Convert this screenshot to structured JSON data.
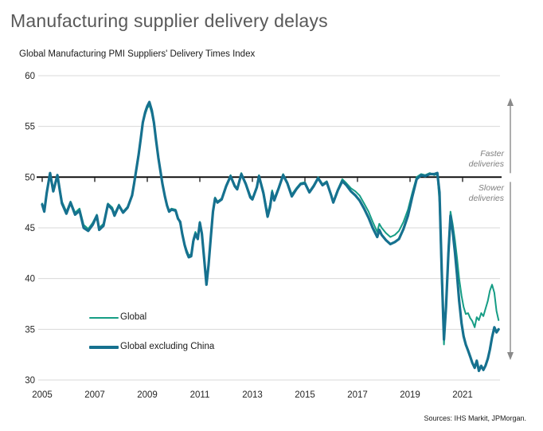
{
  "title": "Manufacturing supplier delivery delays",
  "subtitle": "Global Manufacturing PMI Suppliers' Delivery Times Index",
  "source": "Sources: IHS Markit, JPMorgan.",
  "annotations": {
    "faster": {
      "line1": "Faster",
      "line2": "deliveries"
    },
    "slower": {
      "line1": "Slower",
      "line2": "deliveries"
    }
  },
  "legend": {
    "items": [
      {
        "label": "Global"
      },
      {
        "label": "Global excluding China"
      }
    ]
  },
  "colors": {
    "global_line": "#169d85",
    "ex_china_line": "#16718f",
    "grid": "#d8d8d8",
    "reference_line": "#000000",
    "arrow": "#8a8a8a",
    "title_text": "#595959",
    "annotation_text": "#7f7f7f",
    "axis_text": "#262626"
  },
  "chart_data": {
    "type": "line",
    "title": "Global Manufacturing PMI Suppliers' Delivery Times Index",
    "xlabel": "",
    "ylabel": "",
    "xlim": [
      2005,
      2022.45
    ],
    "ylim": [
      30,
      60
    ],
    "xticks": [
      2005,
      2007,
      2009,
      2011,
      2013,
      2015,
      2017,
      2019,
      2021
    ],
    "yticks": [
      30,
      35,
      40,
      45,
      50,
      55,
      60
    ],
    "reference_line": 50,
    "grid": "horizontal",
    "legend_position": "inside-bottom-left",
    "series": [
      {
        "name": "Global",
        "color": "#169d85",
        "width": 2,
        "points": [
          [
            2005.0,
            47.4
          ],
          [
            2005.08,
            46.8
          ],
          [
            2005.17,
            48.5
          ],
          [
            2005.3,
            50.3
          ],
          [
            2005.42,
            48.8
          ],
          [
            2005.58,
            50.1
          ],
          [
            2005.67,
            48.9
          ],
          [
            2005.75,
            47.6
          ],
          [
            2005.92,
            46.6
          ],
          [
            2006.08,
            47.6
          ],
          [
            2006.25,
            46.5
          ],
          [
            2006.42,
            46.9
          ],
          [
            2006.58,
            45.3
          ],
          [
            2006.75,
            44.9
          ],
          [
            2006.92,
            45.5
          ],
          [
            2007.08,
            46.3
          ],
          [
            2007.17,
            45.0
          ],
          [
            2007.33,
            45.4
          ],
          [
            2007.5,
            47.4
          ],
          [
            2007.67,
            47.0
          ],
          [
            2007.75,
            46.4
          ],
          [
            2007.92,
            47.3
          ],
          [
            2008.08,
            46.6
          ],
          [
            2008.25,
            47.1
          ],
          [
            2008.42,
            48.3
          ],
          [
            2008.5,
            49.5
          ],
          [
            2008.58,
            50.8
          ],
          [
            2008.67,
            52.4
          ],
          [
            2008.75,
            53.9
          ],
          [
            2008.83,
            55.3
          ],
          [
            2008.92,
            56.2
          ],
          [
            2009.0,
            56.8
          ],
          [
            2009.08,
            57.1
          ],
          [
            2009.17,
            56.3
          ],
          [
            2009.25,
            55.2
          ],
          [
            2009.33,
            53.6
          ],
          [
            2009.42,
            51.8
          ],
          [
            2009.5,
            50.6
          ],
          [
            2009.58,
            49.3
          ],
          [
            2009.67,
            48.2
          ],
          [
            2009.75,
            47.3
          ],
          [
            2009.83,
            46.7
          ],
          [
            2009.92,
            46.9
          ],
          [
            2010.08,
            46.8
          ],
          [
            2010.17,
            46.0
          ],
          [
            2010.25,
            45.4
          ],
          [
            2010.33,
            44.3
          ],
          [
            2010.42,
            43.4
          ],
          [
            2010.5,
            42.8
          ],
          [
            2010.58,
            42.3
          ],
          [
            2010.67,
            42.4
          ],
          [
            2010.75,
            43.9
          ],
          [
            2010.83,
            44.6
          ],
          [
            2010.92,
            44.1
          ],
          [
            2011.0,
            45.6
          ],
          [
            2011.08,
            44.6
          ],
          [
            2011.17,
            42.0
          ],
          [
            2011.25,
            39.6
          ],
          [
            2011.33,
            41.5
          ],
          [
            2011.42,
            44.4
          ],
          [
            2011.5,
            46.8
          ],
          [
            2011.58,
            48.0
          ],
          [
            2011.67,
            47.6
          ],
          [
            2011.83,
            47.9
          ],
          [
            2012.0,
            49.2
          ],
          [
            2012.17,
            50.2
          ],
          [
            2012.33,
            49.2
          ],
          [
            2012.42,
            48.9
          ],
          [
            2012.58,
            50.4
          ],
          [
            2012.75,
            49.4
          ],
          [
            2012.92,
            48.2
          ],
          [
            2013.0,
            47.9
          ],
          [
            2013.17,
            49.1
          ],
          [
            2013.25,
            50.2
          ],
          [
            2013.42,
            48.6
          ],
          [
            2013.58,
            46.4
          ],
          [
            2013.67,
            47.3
          ],
          [
            2013.75,
            48.7
          ],
          [
            2013.83,
            47.9
          ],
          [
            2014.0,
            49.0
          ],
          [
            2014.17,
            50.3
          ],
          [
            2014.33,
            49.5
          ],
          [
            2014.5,
            48.3
          ],
          [
            2014.67,
            48.9
          ],
          [
            2014.83,
            49.4
          ],
          [
            2015.0,
            49.5
          ],
          [
            2015.17,
            48.6
          ],
          [
            2015.33,
            49.2
          ],
          [
            2015.5,
            50.0
          ],
          [
            2015.67,
            49.3
          ],
          [
            2015.83,
            49.6
          ],
          [
            2016.0,
            48.3
          ],
          [
            2016.08,
            47.6
          ],
          [
            2016.25,
            48.8
          ],
          [
            2016.42,
            49.8
          ],
          [
            2016.58,
            49.4
          ],
          [
            2016.75,
            48.9
          ],
          [
            2016.92,
            48.6
          ],
          [
            2017.08,
            48.2
          ],
          [
            2017.25,
            47.4
          ],
          [
            2017.42,
            46.6
          ],
          [
            2017.58,
            45.6
          ],
          [
            2017.75,
            44.6
          ],
          [
            2017.83,
            45.4
          ],
          [
            2017.92,
            45.0
          ],
          [
            2018.08,
            44.5
          ],
          [
            2018.25,
            44.1
          ],
          [
            2018.42,
            44.3
          ],
          [
            2018.58,
            44.7
          ],
          [
            2018.75,
            45.6
          ],
          [
            2018.92,
            46.8
          ],
          [
            2019.08,
            48.4
          ],
          [
            2019.25,
            50.0
          ],
          [
            2019.42,
            50.3
          ],
          [
            2019.58,
            50.2
          ],
          [
            2019.75,
            50.4
          ],
          [
            2019.92,
            50.2
          ],
          [
            2020.04,
            50.3
          ],
          [
            2020.12,
            47.5
          ],
          [
            2020.21,
            39.5
          ],
          [
            2020.29,
            33.5
          ],
          [
            2020.37,
            37.5
          ],
          [
            2020.46,
            43.0
          ],
          [
            2020.54,
            46.6
          ],
          [
            2020.62,
            45.4
          ],
          [
            2020.71,
            43.8
          ],
          [
            2020.79,
            42.0
          ],
          [
            2020.87,
            40.0
          ],
          [
            2020.96,
            38.3
          ],
          [
            2021.04,
            37.2
          ],
          [
            2021.12,
            36.5
          ],
          [
            2021.21,
            36.6
          ],
          [
            2021.29,
            36.1
          ],
          [
            2021.37,
            35.8
          ],
          [
            2021.46,
            35.2
          ],
          [
            2021.54,
            36.2
          ],
          [
            2021.62,
            35.9
          ],
          [
            2021.71,
            36.6
          ],
          [
            2021.79,
            36.3
          ],
          [
            2021.87,
            37.0
          ],
          [
            2021.96,
            37.8
          ],
          [
            2022.04,
            38.8
          ],
          [
            2022.12,
            39.4
          ],
          [
            2022.21,
            38.6
          ],
          [
            2022.29,
            36.8
          ],
          [
            2022.37,
            35.9
          ]
        ]
      },
      {
        "name": "Global excluding China",
        "color": "#16718f",
        "width": 3.2,
        "points": [
          [
            2005.0,
            47.3
          ],
          [
            2005.08,
            46.6
          ],
          [
            2005.17,
            48.4
          ],
          [
            2005.3,
            50.4
          ],
          [
            2005.42,
            48.6
          ],
          [
            2005.58,
            50.2
          ],
          [
            2005.67,
            48.7
          ],
          [
            2005.75,
            47.4
          ],
          [
            2005.92,
            46.4
          ],
          [
            2006.08,
            47.5
          ],
          [
            2006.25,
            46.3
          ],
          [
            2006.42,
            46.7
          ],
          [
            2006.58,
            45.0
          ],
          [
            2006.75,
            44.7
          ],
          [
            2006.92,
            45.3
          ],
          [
            2007.08,
            46.2
          ],
          [
            2007.17,
            44.8
          ],
          [
            2007.33,
            45.2
          ],
          [
            2007.5,
            47.3
          ],
          [
            2007.67,
            46.8
          ],
          [
            2007.75,
            46.2
          ],
          [
            2007.92,
            47.2
          ],
          [
            2008.08,
            46.5
          ],
          [
            2008.25,
            47.0
          ],
          [
            2008.42,
            48.2
          ],
          [
            2008.5,
            49.4
          ],
          [
            2008.58,
            50.7
          ],
          [
            2008.67,
            52.2
          ],
          [
            2008.75,
            53.8
          ],
          [
            2008.83,
            55.4
          ],
          [
            2008.92,
            56.4
          ],
          [
            2009.0,
            57.0
          ],
          [
            2009.08,
            57.4
          ],
          [
            2009.17,
            56.6
          ],
          [
            2009.25,
            55.4
          ],
          [
            2009.33,
            53.7
          ],
          [
            2009.42,
            51.9
          ],
          [
            2009.5,
            50.6
          ],
          [
            2009.58,
            49.3
          ],
          [
            2009.67,
            48.1
          ],
          [
            2009.75,
            47.2
          ],
          [
            2009.83,
            46.6
          ],
          [
            2009.92,
            46.8
          ],
          [
            2010.08,
            46.7
          ],
          [
            2010.17,
            45.9
          ],
          [
            2010.25,
            45.6
          ],
          [
            2010.33,
            44.4
          ],
          [
            2010.42,
            43.3
          ],
          [
            2010.5,
            42.6
          ],
          [
            2010.58,
            42.1
          ],
          [
            2010.67,
            42.2
          ],
          [
            2010.75,
            43.7
          ],
          [
            2010.83,
            44.4
          ],
          [
            2010.92,
            43.9
          ],
          [
            2011.0,
            45.5
          ],
          [
            2011.08,
            44.4
          ],
          [
            2011.17,
            41.8
          ],
          [
            2011.25,
            39.4
          ],
          [
            2011.33,
            41.3
          ],
          [
            2011.42,
            44.2
          ],
          [
            2011.5,
            46.6
          ],
          [
            2011.58,
            47.9
          ],
          [
            2011.67,
            47.5
          ],
          [
            2011.83,
            47.8
          ],
          [
            2012.0,
            49.1
          ],
          [
            2012.17,
            50.1
          ],
          [
            2012.33,
            49.1
          ],
          [
            2012.42,
            48.8
          ],
          [
            2012.58,
            50.3
          ],
          [
            2012.75,
            49.3
          ],
          [
            2012.92,
            48.0
          ],
          [
            2013.0,
            47.8
          ],
          [
            2013.17,
            49.0
          ],
          [
            2013.25,
            50.1
          ],
          [
            2013.42,
            48.4
          ],
          [
            2013.58,
            46.1
          ],
          [
            2013.67,
            47.0
          ],
          [
            2013.75,
            48.5
          ],
          [
            2013.83,
            47.7
          ],
          [
            2014.0,
            48.9
          ],
          [
            2014.17,
            50.2
          ],
          [
            2014.33,
            49.4
          ],
          [
            2014.5,
            48.1
          ],
          [
            2014.67,
            48.8
          ],
          [
            2014.83,
            49.3
          ],
          [
            2015.0,
            49.4
          ],
          [
            2015.17,
            48.5
          ],
          [
            2015.33,
            49.1
          ],
          [
            2015.5,
            49.9
          ],
          [
            2015.67,
            49.2
          ],
          [
            2015.83,
            49.5
          ],
          [
            2016.0,
            48.2
          ],
          [
            2016.08,
            47.5
          ],
          [
            2016.25,
            48.7
          ],
          [
            2016.42,
            49.6
          ],
          [
            2016.58,
            49.2
          ],
          [
            2016.75,
            48.6
          ],
          [
            2016.92,
            48.2
          ],
          [
            2017.08,
            47.7
          ],
          [
            2017.25,
            46.9
          ],
          [
            2017.42,
            46.0
          ],
          [
            2017.58,
            45.0
          ],
          [
            2017.75,
            44.1
          ],
          [
            2017.83,
            44.8
          ],
          [
            2017.92,
            44.3
          ],
          [
            2018.08,
            43.8
          ],
          [
            2018.25,
            43.4
          ],
          [
            2018.42,
            43.6
          ],
          [
            2018.58,
            43.9
          ],
          [
            2018.75,
            44.9
          ],
          [
            2018.92,
            46.2
          ],
          [
            2019.08,
            48.0
          ],
          [
            2019.25,
            49.8
          ],
          [
            2019.42,
            50.2
          ],
          [
            2019.58,
            50.1
          ],
          [
            2019.75,
            50.3
          ],
          [
            2019.92,
            50.3
          ],
          [
            2020.04,
            50.4
          ],
          [
            2020.12,
            48.5
          ],
          [
            2020.21,
            40.5
          ],
          [
            2020.29,
            34.0
          ],
          [
            2020.37,
            37.2
          ],
          [
            2020.46,
            42.5
          ],
          [
            2020.54,
            46.2
          ],
          [
            2020.62,
            44.7
          ],
          [
            2020.71,
            42.6
          ],
          [
            2020.79,
            40.3
          ],
          [
            2020.87,
            37.8
          ],
          [
            2020.96,
            35.6
          ],
          [
            2021.04,
            34.3
          ],
          [
            2021.12,
            33.5
          ],
          [
            2021.21,
            32.9
          ],
          [
            2021.29,
            32.3
          ],
          [
            2021.37,
            31.7
          ],
          [
            2021.46,
            31.2
          ],
          [
            2021.54,
            31.9
          ],
          [
            2021.62,
            30.9
          ],
          [
            2021.71,
            31.4
          ],
          [
            2021.79,
            31.0
          ],
          [
            2021.87,
            31.4
          ],
          [
            2021.96,
            32.1
          ],
          [
            2022.04,
            33.0
          ],
          [
            2022.12,
            34.2
          ],
          [
            2022.21,
            35.2
          ],
          [
            2022.29,
            34.7
          ],
          [
            2022.37,
            35.0
          ]
        ]
      }
    ]
  }
}
